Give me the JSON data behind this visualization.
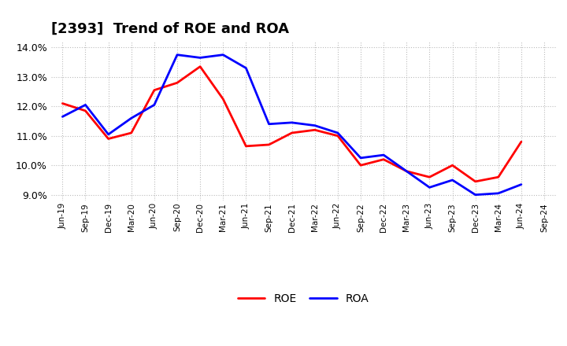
{
  "title": "[2393]  Trend of ROE and ROA",
  "x_labels": [
    "Jun-19",
    "Sep-19",
    "Dec-19",
    "Mar-20",
    "Jun-20",
    "Sep-20",
    "Dec-20",
    "Mar-21",
    "Jun-21",
    "Sep-21",
    "Dec-21",
    "Mar-22",
    "Jun-22",
    "Sep-22",
    "Dec-22",
    "Mar-23",
    "Jun-23",
    "Sep-23",
    "Dec-23",
    "Mar-24",
    "Jun-24",
    "Sep-24"
  ],
  "roe": [
    12.1,
    11.85,
    10.9,
    11.1,
    12.55,
    12.8,
    13.35,
    12.25,
    10.65,
    10.7,
    11.1,
    11.2,
    11.0,
    10.0,
    10.2,
    9.8,
    9.6,
    10.0,
    9.45,
    9.6,
    10.8,
    null
  ],
  "roa": [
    11.65,
    12.05,
    11.05,
    11.6,
    12.05,
    13.75,
    13.65,
    13.75,
    13.3,
    11.4,
    11.45,
    11.35,
    11.1,
    10.25,
    10.35,
    9.8,
    9.25,
    9.5,
    9.0,
    9.05,
    9.35,
    null
  ],
  "roe_color": "#FF0000",
  "roa_color": "#0000FF",
  "ylim": [
    8.8,
    14.2
  ],
  "yticks": [
    9.0,
    10.0,
    11.0,
    12.0,
    13.0,
    14.0
  ],
  "bg_color": "#FFFFFF",
  "plot_bg_color": "#FFFFFF",
  "grid_color": "#AAAAAA",
  "title_fontsize": 13,
  "line_width": 2.0
}
